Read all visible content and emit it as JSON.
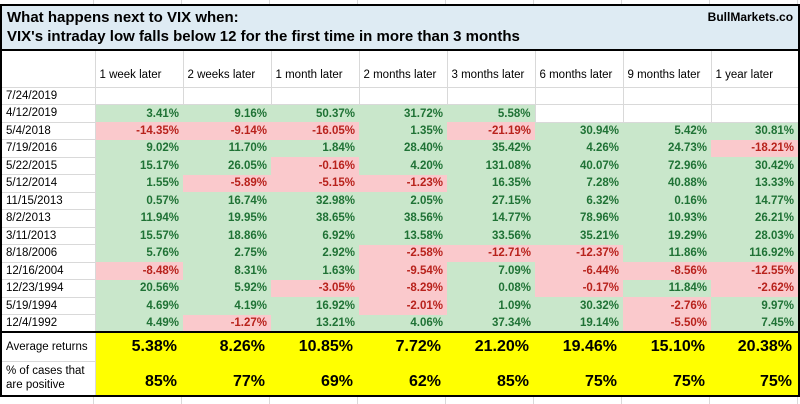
{
  "header": {
    "title_line1": "What happens next to VIX when:",
    "title_line2": "VIX's intraday low falls below 12 for the first time in more than 3 months",
    "brand": "BullMarkets.co"
  },
  "table": {
    "columns": [
      "1 week later",
      "2 weeks later",
      "1 month later",
      "2 months later",
      "3 months later",
      "6 months later",
      "9 months later",
      "1 year later"
    ],
    "rows": [
      {
        "date": "7/24/2019",
        "values": [
          "",
          "",
          "",
          "",
          "",
          "",
          "",
          ""
        ]
      },
      {
        "date": "4/12/2019",
        "values": [
          "3.41%",
          "9.16%",
          "50.37%",
          "31.72%",
          "5.58%",
          "",
          "",
          ""
        ]
      },
      {
        "date": "5/4/2018",
        "values": [
          "-14.35%",
          "-9.14%",
          "-16.05%",
          "1.35%",
          "-21.19%",
          "30.94%",
          "5.42%",
          "30.81%"
        ]
      },
      {
        "date": "7/19/2016",
        "values": [
          "9.02%",
          "11.70%",
          "1.84%",
          "28.40%",
          "35.42%",
          "4.26%",
          "24.73%",
          "-18.21%"
        ]
      },
      {
        "date": "5/22/2015",
        "values": [
          "15.17%",
          "26.05%",
          "-0.16%",
          "4.20%",
          "131.08%",
          "40.07%",
          "72.96%",
          "30.42%"
        ]
      },
      {
        "date": "5/12/2014",
        "values": [
          "1.55%",
          "-5.89%",
          "-5.15%",
          "-1.23%",
          "16.35%",
          "7.28%",
          "40.88%",
          "13.33%"
        ]
      },
      {
        "date": "11/15/2013",
        "values": [
          "0.57%",
          "16.74%",
          "32.98%",
          "2.05%",
          "27.15%",
          "6.32%",
          "0.16%",
          "14.77%"
        ]
      },
      {
        "date": "8/2/2013",
        "values": [
          "11.94%",
          "19.95%",
          "38.65%",
          "38.56%",
          "14.77%",
          "78.96%",
          "10.93%",
          "26.21%"
        ]
      },
      {
        "date": "3/11/2013",
        "values": [
          "15.57%",
          "18.86%",
          "6.92%",
          "13.58%",
          "33.56%",
          "35.21%",
          "19.29%",
          "28.03%"
        ]
      },
      {
        "date": "8/18/2006",
        "values": [
          "5.76%",
          "2.75%",
          "2.92%",
          "-2.58%",
          "-12.71%",
          "-12.37%",
          "11.86%",
          "116.92%"
        ]
      },
      {
        "date": "12/16/2004",
        "values": [
          "-8.48%",
          "8.31%",
          "1.63%",
          "-9.54%",
          "7.09%",
          "-6.44%",
          "-8.56%",
          "-12.55%"
        ]
      },
      {
        "date": "12/23/1994",
        "values": [
          "20.56%",
          "5.92%",
          "-3.05%",
          "-8.29%",
          "0.08%",
          "-0.17%",
          "11.84%",
          "-2.62%"
        ]
      },
      {
        "date": "5/19/1994",
        "values": [
          "4.69%",
          "4.19%",
          "16.92%",
          "-2.01%",
          "1.09%",
          "30.32%",
          "-2.76%",
          "9.97%"
        ]
      },
      {
        "date": "12/4/1992",
        "values": [
          "4.49%",
          "-1.27%",
          "13.21%",
          "4.06%",
          "37.34%",
          "19.14%",
          "-5.50%",
          "7.45%"
        ]
      }
    ],
    "footer": {
      "avg_label": "Average returns",
      "avg_values": [
        "5.38%",
        "8.26%",
        "10.85%",
        "7.72%",
        "21.20%",
        "19.46%",
        "15.10%",
        "20.38%"
      ],
      "pct_label_line1": "% of cases that",
      "pct_label_line2": "are positive",
      "pct_values": [
        "85%",
        "77%",
        "69%",
        "62%",
        "85%",
        "75%",
        "75%",
        "75%"
      ]
    }
  },
  "colors": {
    "title_bg": "#deebf3",
    "positive_bg": "#c9e7cb",
    "positive_text": "#1f7235",
    "negative_bg": "#fac9cc",
    "negative_text": "#b8221c",
    "highlight_bg": "#ffff00"
  }
}
